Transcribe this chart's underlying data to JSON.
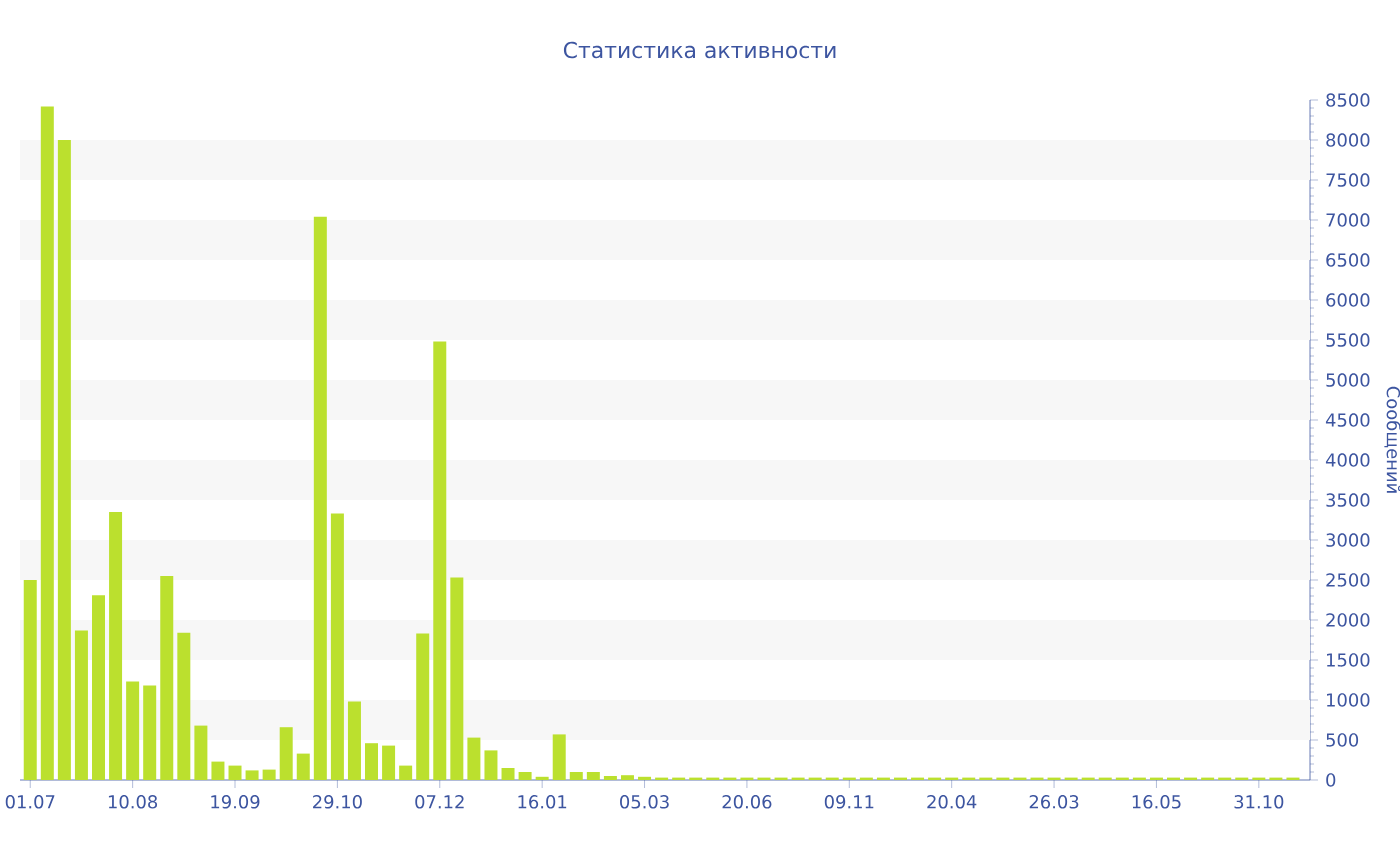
{
  "chart_data": {
    "type": "bar",
    "title": "Статистика активности",
    "ylabel": "Сообщений",
    "categories": [
      "01.07",
      null,
      null,
      null,
      null,
      null,
      "10.08",
      null,
      null,
      null,
      null,
      null,
      "19.09",
      null,
      null,
      null,
      null,
      null,
      "29.10",
      null,
      null,
      null,
      null,
      null,
      "07.12",
      null,
      null,
      null,
      null,
      null,
      "16.01",
      null,
      null,
      null,
      null,
      null,
      "05.03",
      null,
      null,
      null,
      null,
      null,
      "20.06",
      null,
      null,
      null,
      null,
      null,
      "09.11",
      null,
      null,
      null,
      null,
      null,
      "20.04",
      null,
      null,
      null,
      null,
      null,
      "26.03",
      null,
      null,
      null,
      null,
      null,
      "16.05",
      null,
      null,
      null,
      null,
      null,
      "31.10",
      null,
      null
    ],
    "values": [
      2500,
      8420,
      8000,
      1870,
      2310,
      3350,
      1230,
      1180,
      2550,
      1840,
      680,
      230,
      180,
      120,
      130,
      660,
      330,
      7040,
      3330,
      980,
      460,
      430,
      180,
      1830,
      5480,
      2530,
      530,
      370,
      150,
      100,
      40,
      570,
      100,
      100,
      50,
      60,
      40,
      30,
      30,
      30,
      30,
      30,
      30,
      30,
      30,
      30,
      30,
      30,
      30,
      30,
      30,
      30,
      30,
      30,
      30,
      30,
      30,
      30,
      30,
      30,
      30,
      30,
      30,
      30,
      30,
      30,
      30,
      30,
      30,
      30,
      30,
      30,
      30,
      30,
      30
    ],
    "color": "#bbe02e",
    "ylim": [
      0,
      8500
    ],
    "yticks": [
      0,
      500,
      1000,
      1500,
      2000,
      2500,
      3000,
      3500,
      4000,
      4500,
      5000,
      5500,
      6000,
      6500,
      7000,
      7500,
      8000,
      8500
    ],
    "bands": [
      {
        "axis": "y",
        "from": 500,
        "to": 1000,
        "color": "#f7f7f7"
      },
      {
        "axis": "y",
        "from": 1500,
        "to": 2000,
        "color": "#f7f7f7"
      },
      {
        "axis": "y",
        "from": 2500,
        "to": 3000,
        "color": "#f7f7f7"
      },
      {
        "axis": "y",
        "from": 3500,
        "to": 4000,
        "color": "#f7f7f7"
      },
      {
        "axis": "y",
        "from": 4500,
        "to": 5000,
        "color": "#f7f7f7"
      },
      {
        "axis": "y",
        "from": 5500,
        "to": 6000,
        "color": "#f7f7f7"
      },
      {
        "axis": "y",
        "from": 6500,
        "to": 7000,
        "color": "#f7f7f7"
      },
      {
        "axis": "y",
        "from": 7500,
        "to": 8000,
        "color": "#f7f7f7"
      }
    ]
  }
}
